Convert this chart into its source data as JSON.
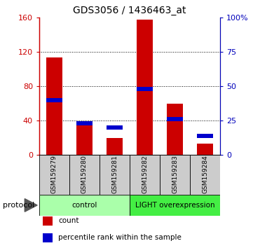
{
  "title": "GDS3056 / 1436463_at",
  "categories": [
    "GSM159279",
    "GSM159280",
    "GSM159281",
    "GSM159282",
    "GSM159283",
    "GSM159284"
  ],
  "count_values": [
    113,
    38,
    20,
    157,
    60,
    13
  ],
  "percentile_values": [
    40,
    23,
    20,
    48,
    26,
    14
  ],
  "left_ylim": [
    0,
    160
  ],
  "left_yticks": [
    0,
    40,
    80,
    120,
    160
  ],
  "right_ylim": [
    0,
    100
  ],
  "right_yticks": [
    0,
    25,
    50,
    75,
    100
  ],
  "right_yticklabels": [
    "0",
    "25",
    "50",
    "75",
    "100%"
  ],
  "bar_color_red": "#cc0000",
  "bar_color_blue": "#0000cc",
  "bar_width": 0.55,
  "protocol_groups": [
    {
      "label": "control",
      "indices": [
        0,
        1,
        2
      ],
      "color": "#aaffaa"
    },
    {
      "label": "LIGHT overexpression",
      "indices": [
        3,
        4,
        5
      ],
      "color": "#44ee44"
    }
  ],
  "protocol_label": "protocol",
  "legend_items": [
    {
      "label": "count",
      "color": "#cc0000"
    },
    {
      "label": "percentile rank within the sample",
      "color": "#0000cc"
    }
  ],
  "gridcolor": "black",
  "gridlinestyle": "dotted",
  "left_axis_color": "#cc0000",
  "right_axis_color": "#0000bb",
  "xtick_bg": "#cccccc",
  "n_categories": 6
}
